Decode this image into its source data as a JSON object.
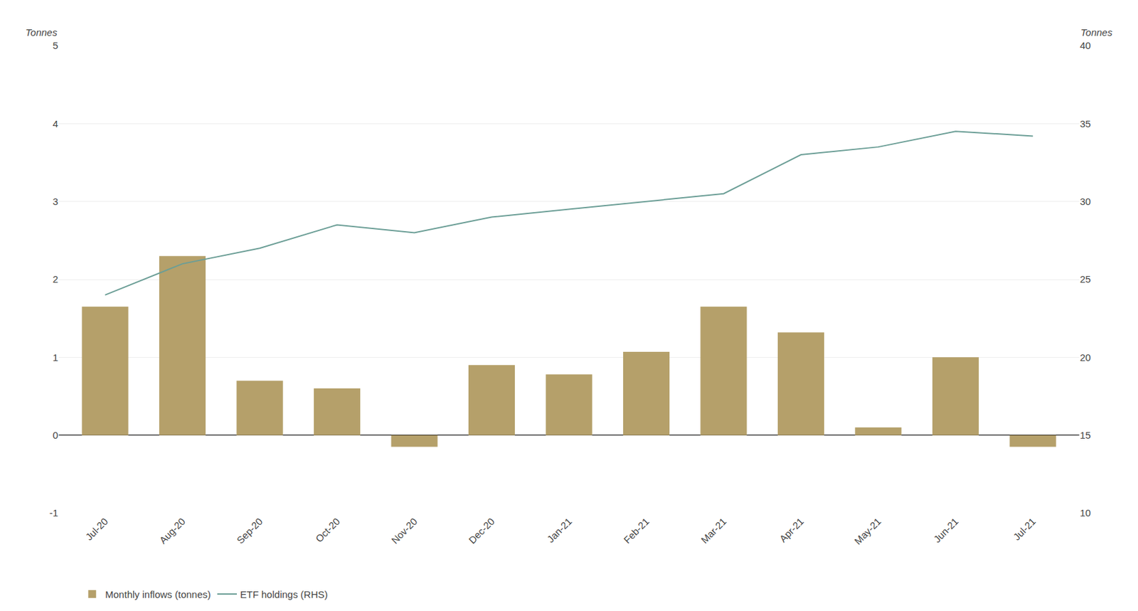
{
  "chart_data": {
    "type": "bar",
    "categories": [
      "Jul-20",
      "Aug-20",
      "Sep-20",
      "Oct-20",
      "Nov-20",
      "Dec-20",
      "Jan-21",
      "Feb-21",
      "Mar-21",
      "Apr-21",
      "May-21",
      "Jun-21",
      "Jul-21"
    ],
    "series": [
      {
        "name": "Monthly inflows (tonnes)",
        "type": "bar",
        "color": "#b5a06a",
        "values": [
          1.65,
          2.3,
          0.7,
          0.6,
          -0.15,
          0.9,
          0.78,
          1.07,
          1.65,
          1.32,
          0.1,
          1.0,
          -0.15
        ]
      },
      {
        "name": "ETF holdings (RHS)",
        "type": "line",
        "axis": "y2",
        "color": "#6b9e96",
        "values": [
          24.0,
          26.0,
          27.0,
          28.5,
          28.0,
          29.0,
          29.5,
          30.0,
          30.5,
          33.0,
          33.5,
          34.5,
          34.2
        ]
      }
    ],
    "ylabel": "Tonnes",
    "y2label": "Tonnes",
    "ylim": [
      -1,
      5
    ],
    "yticks": [
      -1,
      0,
      1,
      2,
      3,
      4,
      5
    ],
    "y2lim": [
      10,
      40
    ],
    "y2ticks": [
      10,
      15,
      20,
      25,
      30,
      35,
      40
    ],
    "grid": true,
    "legend": "lower left"
  }
}
